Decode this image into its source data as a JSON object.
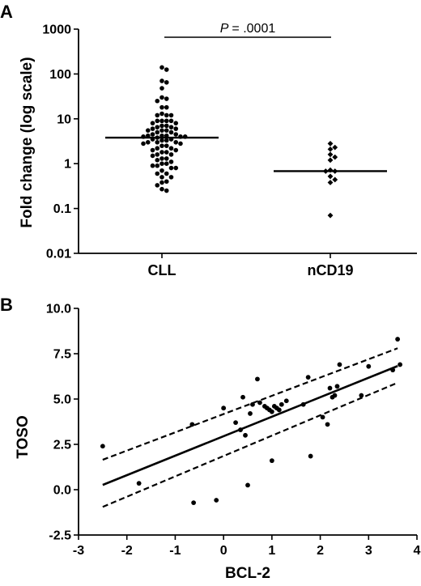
{
  "chart_data": [
    {
      "panel": "A",
      "type": "scatter",
      "ylabel": "Fold change (log scale)",
      "yscale": "log",
      "ylim": [
        0.01,
        1000
      ],
      "yticks": [
        "1000",
        "100",
        "10",
        "1",
        "0.1",
        "0.01"
      ],
      "categories": [
        "CLL",
        "nCD19"
      ],
      "annotation": {
        "p_prefix": "P",
        "p_value": "= .0001"
      },
      "series": [
        {
          "category": "CLL",
          "median": 3.8,
          "values": [
            140,
            125,
            70,
            65,
            48,
            30,
            28,
            25,
            18,
            18,
            13,
            12,
            12,
            12,
            9,
            9,
            9,
            9,
            8,
            8,
            7,
            7,
            6.5,
            6.5,
            6,
            6,
            5.5,
            5.5,
            5.5,
            5,
            5,
            4.5,
            4.5,
            4.2,
            4.2,
            4.2,
            4,
            4,
            4,
            3.8,
            3.5,
            3.5,
            3.3,
            3.3,
            3,
            3,
            3,
            2.8,
            2.8,
            2.5,
            2.5,
            2.2,
            2.2,
            2,
            2,
            1.8,
            1.8,
            1.6,
            1.6,
            1.5,
            1.3,
            1.3,
            1.2,
            1.1,
            1,
            1,
            0.9,
            0.9,
            0.8,
            0.8,
            0.7,
            0.6,
            0.6,
            0.5,
            0.5,
            0.4,
            0.38,
            0.33,
            0.27,
            0.25
          ]
        },
        {
          "category": "nCD19",
          "median": 0.68,
          "values": [
            2.8,
            2.3,
            2.1,
            1.6,
            1.4,
            1.2,
            0.72,
            0.68,
            0.68,
            0.52,
            0.44,
            0.38,
            0.07
          ]
        }
      ]
    },
    {
      "panel": "B",
      "type": "scatter",
      "xlabel": "BCL-2",
      "ylabel": "TOSO",
      "xlim": [
        -3,
        4
      ],
      "ylim": [
        -2.5,
        10
      ],
      "xticks": [
        "-3",
        "-2",
        "-1",
        "0",
        "1",
        "2",
        "3",
        "4"
      ],
      "yticks": [
        "10.0",
        "7.5",
        "5.0",
        "2.5",
        "0.0",
        "-2.5"
      ],
      "points": [
        [
          -2.5,
          2.4
        ],
        [
          -1.75,
          0.35
        ],
        [
          -0.65,
          3.6
        ],
        [
          -0.62,
          -0.72
        ],
        [
          -0.15,
          -0.58
        ],
        [
          0.0,
          4.5
        ],
        [
          0.25,
          3.7
        ],
        [
          0.35,
          3.3
        ],
        [
          0.4,
          5.1
        ],
        [
          0.45,
          3.0
        ],
        [
          0.5,
          0.25
        ],
        [
          0.55,
          4.2
        ],
        [
          0.6,
          4.7
        ],
        [
          0.7,
          6.1
        ],
        [
          0.75,
          4.8
        ],
        [
          0.85,
          4.6
        ],
        [
          0.9,
          4.5
        ],
        [
          0.95,
          4.4
        ],
        [
          1.0,
          4.3
        ],
        [
          1.0,
          1.6
        ],
        [
          1.05,
          4.6
        ],
        [
          1.1,
          4.5
        ],
        [
          1.15,
          4.4
        ],
        [
          1.2,
          4.7
        ],
        [
          1.3,
          4.9
        ],
        [
          1.65,
          4.7
        ],
        [
          1.75,
          6.2
        ],
        [
          1.8,
          1.85
        ],
        [
          2.05,
          4.0
        ],
        [
          2.15,
          3.6
        ],
        [
          2.2,
          5.6
        ],
        [
          2.25,
          5.1
        ],
        [
          2.3,
          5.2
        ],
        [
          2.35,
          5.7
        ],
        [
          2.4,
          6.9
        ],
        [
          2.85,
          5.2
        ],
        [
          3.0,
          6.8
        ],
        [
          3.5,
          6.6
        ],
        [
          3.6,
          8.3
        ],
        [
          3.65,
          6.9
        ]
      ],
      "regression": {
        "slope": 1.075,
        "intercept": 2.95
      },
      "confidence_band": {
        "upper": [
          [
            -2.5,
            1.65
          ],
          [
            3.6,
            7.8
          ]
        ],
        "lower": [
          [
            -2.5,
            -0.95
          ],
          [
            3.6,
            5.9
          ]
        ]
      }
    }
  ]
}
